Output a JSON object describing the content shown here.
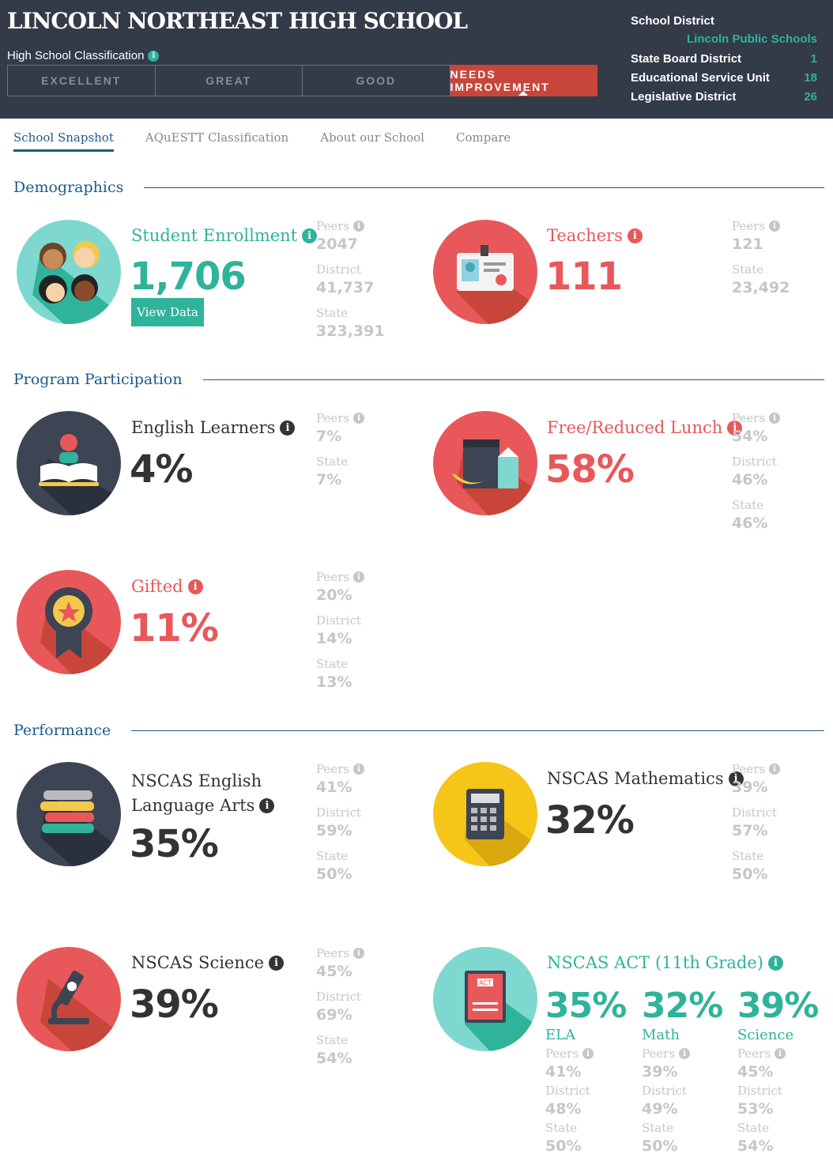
{
  "header": {
    "school_name": "LINCOLN NORTHEAST HIGH SCHOOL",
    "classification_label": "High School Classification",
    "tiers": [
      "EXCELLENT",
      "GREAT",
      "GOOD",
      "NEEDS IMPROVEMENT"
    ],
    "active_tier": "NEEDS IMPROVEMENT",
    "district": {
      "school_district_label": "School District",
      "school_district_value": "Lincoln Public Schools",
      "state_board_label": "State Board District",
      "state_board_value": "1",
      "esu_label": "Educational Service Unit",
      "esu_value": "18",
      "legislative_label": "Legislative District",
      "legislative_value": "26"
    }
  },
  "tabs": [
    "School Snapshot",
    "AQuESTT Classification",
    "About our School",
    "Compare"
  ],
  "sections": {
    "demographics": "Demographics",
    "program": "Program Participation",
    "performance": "Performance"
  },
  "colors": {
    "teal": "#2fb39a",
    "red": "#e8585a",
    "dark_navy": "#333a48",
    "needs_improvement": "#c8453a",
    "blue": "#1d5a8c"
  },
  "metrics": {
    "enrollment": {
      "label": "Student Enrollment",
      "value": "1,706",
      "button": "View Data",
      "icon": "students-icon",
      "peers_label": "Peers",
      "peers": "2047",
      "district_label": "District",
      "district": "41,737",
      "state_label": "State",
      "state": "323,391"
    },
    "teachers": {
      "label": "Teachers",
      "value": "111",
      "icon": "id-badge-icon",
      "peers_label": "Peers",
      "peers": "121",
      "state_label": "State",
      "state": "23,492"
    },
    "english_learners": {
      "label": "English Learners",
      "value": "4%",
      "icon": "reader-book-icon",
      "peers_label": "Peers",
      "peers": "7%",
      "state_label": "State",
      "state": "7%"
    },
    "lunch": {
      "label": "Free/Reduced Lunch",
      "value": "58%",
      "icon": "lunch-bag-icon",
      "peers_label": "Peers",
      "peers": "54%",
      "district_label": "District",
      "district": "46%",
      "state_label": "State",
      "state": "46%"
    },
    "gifted": {
      "label": "Gifted",
      "value": "11%",
      "icon": "award-ribbon-icon",
      "peers_label": "Peers",
      "peers": "20%",
      "district_label": "District",
      "district": "14%",
      "state_label": "State",
      "state": "13%"
    },
    "ela": {
      "label_line1": "NSCAS English",
      "label_line2": "Language Arts",
      "value": "35%",
      "icon": "book-stack-icon",
      "peers_label": "Peers",
      "peers": "41%",
      "district_label": "District",
      "district": "59%",
      "state_label": "State",
      "state": "50%"
    },
    "math": {
      "label": "NSCAS Mathematics",
      "value": "32%",
      "icon": "calculator-icon",
      "peers_label": "Peers",
      "peers": "39%",
      "district_label": "District",
      "district": "57%",
      "state_label": "State",
      "state": "50%"
    },
    "science": {
      "label": "NSCAS Science",
      "value": "39%",
      "icon": "microscope-icon",
      "peers_label": "Peers",
      "peers": "45%",
      "district_label": "District",
      "district": "69%",
      "state_label": "State",
      "state": "54%"
    },
    "act": {
      "label": "NSCAS ACT (11th Grade)",
      "icon": "act-booklet-icon",
      "booklet_text": "ACT",
      "columns": [
        {
          "value": "35%",
          "name": "ELA",
          "peers_label": "Peers",
          "peers": "41%",
          "district_label": "District",
          "district": "48%",
          "state_label": "State",
          "state": "50%"
        },
        {
          "value": "32%",
          "name": "Math",
          "peers_label": "Peers",
          "peers": "39%",
          "district_label": "District",
          "district": "49%",
          "state_label": "State",
          "state": "50%"
        },
        {
          "value": "39%",
          "name": "Science",
          "peers_label": "Peers",
          "peers": "45%",
          "district_label": "District",
          "district": "53%",
          "state_label": "State",
          "state": "54%"
        }
      ]
    }
  }
}
